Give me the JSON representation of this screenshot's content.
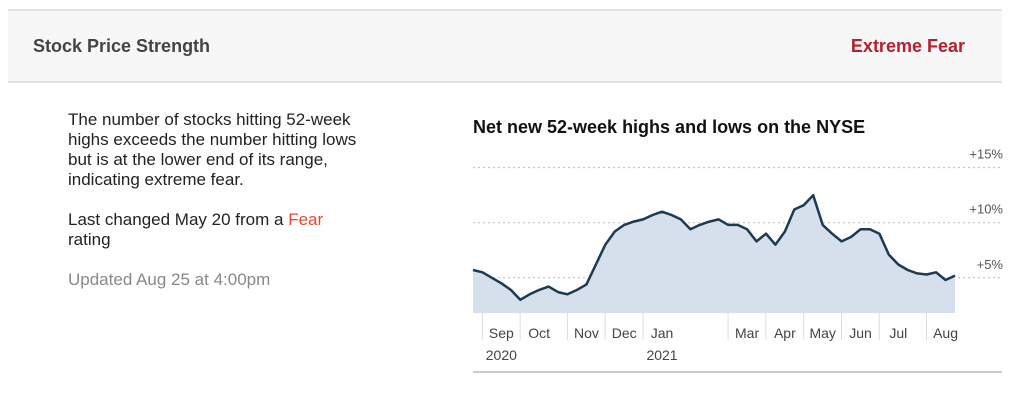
{
  "header": {
    "title": "Stock Price Strength",
    "rating": "Extreme Fear"
  },
  "description": {
    "text": "The number of stocks hitting 52-week highs exceeds the number hitting lows but is at the lower end of its range, indicating extreme fear.",
    "changed_prefix": "Last changed May 20 from a",
    "changed_rating": "Fear",
    "changed_suffix": "rating",
    "updated": "Updated Aug 25 at 4:00pm"
  },
  "chart_data": {
    "type": "area",
    "title": "Net new 52-week highs and lows on the NYSE",
    "categories": [
      null,
      null,
      null,
      "Sep",
      null,
      null,
      null,
      "Oct",
      null,
      null,
      null,
      null,
      "Nov",
      null,
      null,
      null,
      "Dec",
      null,
      null,
      null,
      "Jan",
      null,
      null,
      null,
      null,
      null,
      null,
      null,
      null,
      "Mar",
      null,
      null,
      null,
      "Apr",
      null,
      null,
      null,
      "May",
      null,
      null,
      null,
      "Jun",
      null,
      null,
      null,
      "Jul",
      null,
      null,
      null,
      null,
      "Aug",
      null
    ],
    "years": [
      null,
      null,
      null,
      "2020",
      null,
      null,
      null,
      null,
      null,
      null,
      null,
      null,
      null,
      null,
      null,
      null,
      null,
      null,
      null,
      null,
      "2021",
      null,
      null,
      null,
      null,
      null,
      null,
      null,
      null,
      null,
      null,
      null,
      null,
      null,
      null,
      null,
      null,
      null,
      null,
      null,
      null,
      null,
      null,
      null,
      null,
      null,
      null,
      null,
      null,
      null,
      null,
      null
    ],
    "series": [
      {
        "color": "#1c3a52",
        "fill": "#d6e0ec",
        "values": [
          5.7,
          5.5,
          5.0,
          4.5,
          3.9,
          3.0,
          3.5,
          3.9,
          4.2,
          3.7,
          3.5,
          3.9,
          4.4,
          6.2,
          8.0,
          9.2,
          9.8,
          10.1,
          10.3,
          10.7,
          11.0,
          10.7,
          10.3,
          9.4,
          9.8,
          10.1,
          10.3,
          9.8,
          9.8,
          9.4,
          8.3,
          9.0,
          8.0,
          9.2,
          11.2,
          11.6,
          12.5,
          9.8,
          9.0,
          8.3,
          8.7,
          9.4,
          9.4,
          9.0,
          7.1,
          6.2,
          5.7,
          5.4,
          5.3,
          5.5,
          4.8,
          5.2
        ]
      }
    ],
    "ylim": [
      1.8,
      16.6
    ],
    "yticks": [
      {
        "value": 5,
        "label": "+5%"
      },
      {
        "value": 10,
        "label": "+10%"
      },
      {
        "value": 15,
        "label": "+15%"
      }
    ],
    "grid": true
  }
}
